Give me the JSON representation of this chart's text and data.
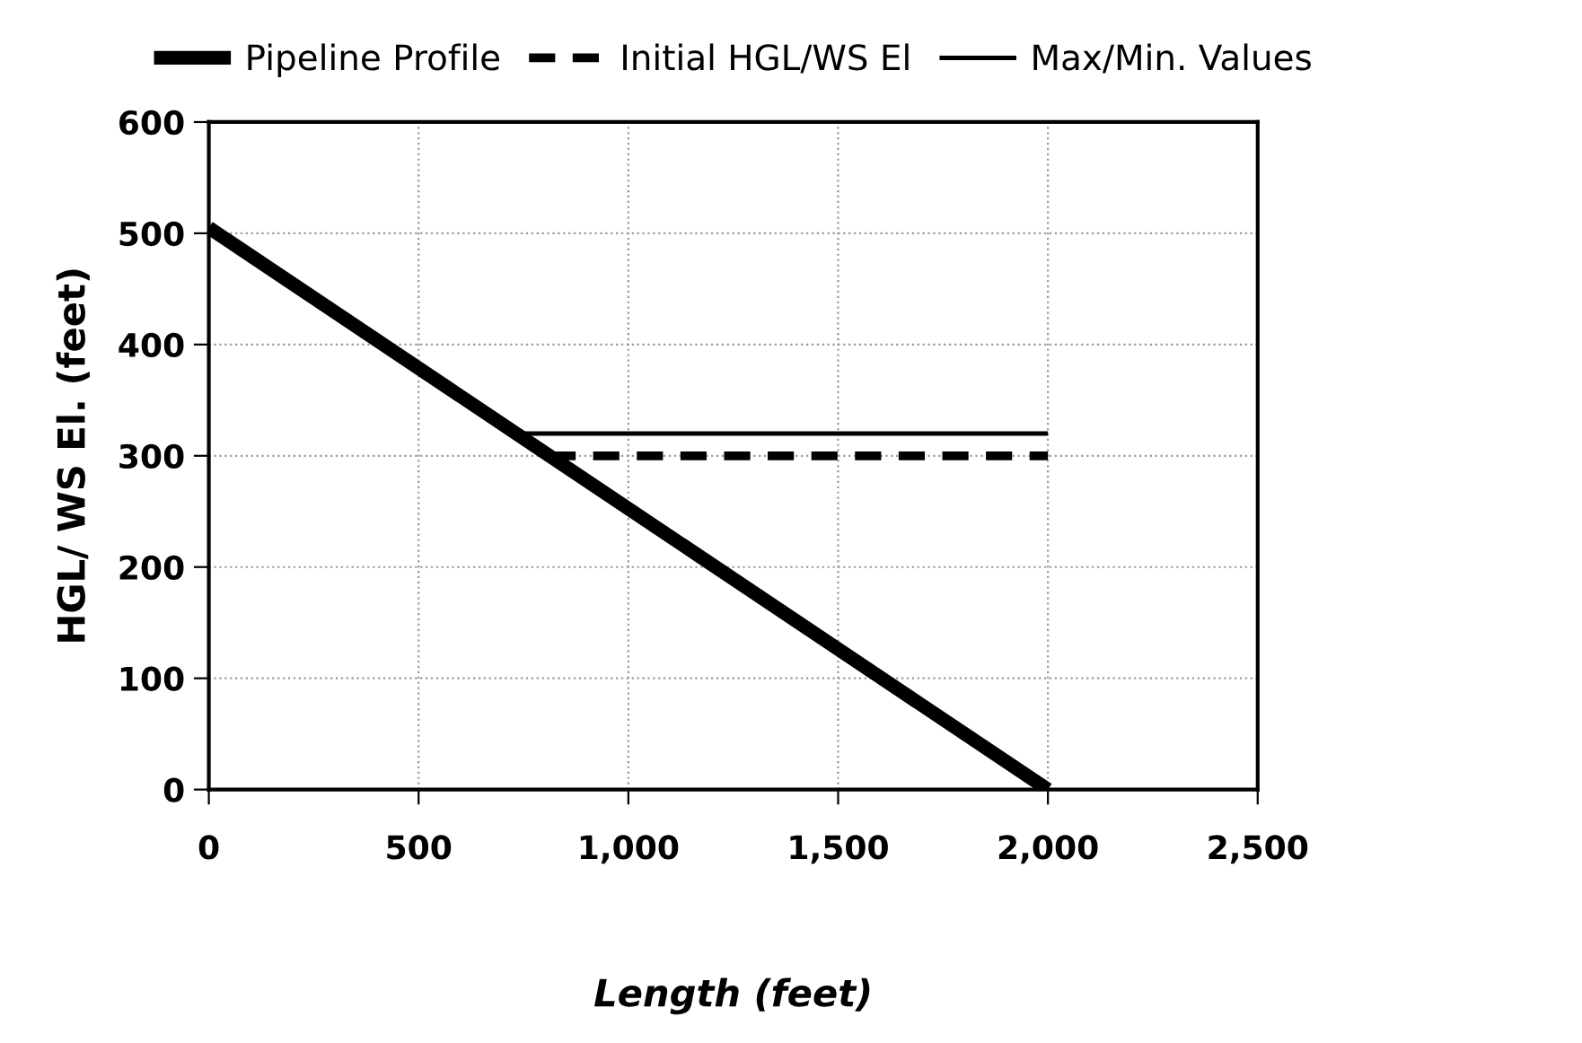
{
  "chart_data": {
    "type": "line",
    "xlabel": "Length (feet)",
    "ylabel": "HGL/ WS El. (feet)",
    "series": [
      {
        "name": "Pipeline Profile",
        "color": "#000000",
        "x": [
          0,
          2000
        ],
        "values": [
          505,
          0
        ],
        "line_style": "solid"
      },
      {
        "name": "Initial HGL/WS El",
        "color": "#000000",
        "x": [
          812,
          2000
        ],
        "values": [
          300,
          300
        ],
        "line_style": "dashed"
      },
      {
        "name": "Max/Min. Values",
        "color": "#000000",
        "x": [
          735,
          2000
        ],
        "values": [
          320,
          320
        ],
        "line_style": "solid"
      }
    ],
    "xlim": [
      0,
      2500
    ],
    "xticks": [
      {
        "value": 0,
        "label": "0"
      },
      {
        "value": 500,
        "label": "500"
      },
      {
        "value": 1000,
        "label": "1,000"
      },
      {
        "value": 1500,
        "label": "1,500"
      },
      {
        "value": 2000,
        "label": "2,000"
      },
      {
        "value": 2500,
        "label": "2,500"
      }
    ],
    "ylim": [
      0,
      600
    ],
    "yticks": [
      0,
      100,
      200,
      300,
      400,
      500,
      600
    ],
    "grid": true,
    "legend": "top",
    "marker": "none"
  }
}
